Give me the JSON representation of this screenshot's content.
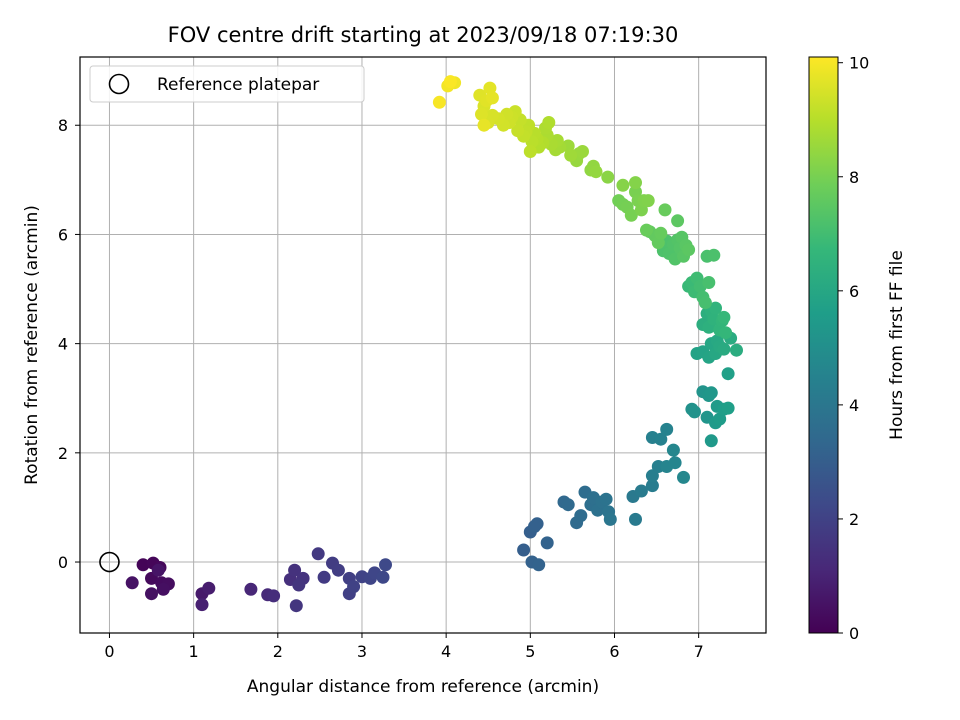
{
  "chart_data": {
    "type": "scatter",
    "title": "FOV centre drift starting at 2023/09/18 07:19:30",
    "xlabel": "Angular distance from reference (arcmin)",
    "ylabel": "Rotation from reference (arcmin)",
    "xlim": [
      -0.35,
      7.8
    ],
    "ylim": [
      -1.3,
      9.25
    ],
    "xticks": [
      0,
      1,
      2,
      3,
      4,
      5,
      6,
      7
    ],
    "yticks": [
      0,
      2,
      4,
      6,
      8
    ],
    "grid": true,
    "legend": {
      "position": "top-left",
      "entries": [
        {
          "label": "Reference platepar",
          "marker": "open-circle"
        }
      ]
    },
    "reference_point": {
      "x": 0,
      "y": 0
    },
    "colorbar": {
      "label": "Hours from first FF file",
      "colormap": "viridis",
      "range": [
        0,
        10.1
      ],
      "ticks": [
        0,
        2,
        4,
        6,
        8,
        10
      ]
    },
    "colormap_stops": [
      "#440154",
      "#482878",
      "#3e4989",
      "#31688e",
      "#26828e",
      "#1f9e89",
      "#35b779",
      "#6ece58",
      "#b5de2b",
      "#fde725"
    ],
    "points": [
      {
        "x": 0.4,
        "y": -0.05,
        "c": 0.1
      },
      {
        "x": 0.52,
        "y": -0.02,
        "c": 0.15
      },
      {
        "x": 0.6,
        "y": -0.1,
        "c": 0.2
      },
      {
        "x": 0.5,
        "y": -0.3,
        "c": 0.25
      },
      {
        "x": 0.62,
        "y": -0.38,
        "c": 0.3
      },
      {
        "x": 0.7,
        "y": -0.4,
        "c": 0.35
      },
      {
        "x": 0.64,
        "y": -0.5,
        "c": 0.4
      },
      {
        "x": 0.5,
        "y": -0.58,
        "c": 0.45
      },
      {
        "x": 0.27,
        "y": -0.38,
        "c": 0.5
      },
      {
        "x": 0.58,
        "y": -0.15,
        "c": 0.55
      },
      {
        "x": 1.1,
        "y": -0.58,
        "c": 0.7
      },
      {
        "x": 1.18,
        "y": -0.48,
        "c": 0.8
      },
      {
        "x": 1.1,
        "y": -0.78,
        "c": 0.9
      },
      {
        "x": 1.68,
        "y": -0.5,
        "c": 1.1
      },
      {
        "x": 1.88,
        "y": -0.6,
        "c": 1.2
      },
      {
        "x": 1.95,
        "y": -0.62,
        "c": 1.3
      },
      {
        "x": 2.15,
        "y": -0.32,
        "c": 1.4
      },
      {
        "x": 2.2,
        "y": -0.15,
        "c": 1.45
      },
      {
        "x": 2.3,
        "y": -0.3,
        "c": 1.5
      },
      {
        "x": 2.25,
        "y": -0.42,
        "c": 1.55
      },
      {
        "x": 2.22,
        "y": -0.8,
        "c": 1.6
      },
      {
        "x": 2.48,
        "y": 0.15,
        "c": 1.7
      },
      {
        "x": 2.55,
        "y": -0.28,
        "c": 1.75
      },
      {
        "x": 2.65,
        "y": -0.02,
        "c": 1.8
      },
      {
        "x": 2.72,
        "y": -0.15,
        "c": 1.85
      },
      {
        "x": 2.85,
        "y": -0.3,
        "c": 1.9
      },
      {
        "x": 2.85,
        "y": -0.58,
        "c": 1.95
      },
      {
        "x": 2.9,
        "y": -0.45,
        "c": 2.0
      },
      {
        "x": 3.0,
        "y": -0.27,
        "c": 2.05
      },
      {
        "x": 3.1,
        "y": -0.3,
        "c": 2.1
      },
      {
        "x": 3.15,
        "y": -0.2,
        "c": 2.15
      },
      {
        "x": 3.25,
        "y": -0.28,
        "c": 2.2
      },
      {
        "x": 3.28,
        "y": -0.05,
        "c": 2.25
      },
      {
        "x": 4.92,
        "y": 0.22,
        "c": 3.0
      },
      {
        "x": 5.0,
        "y": 0.55,
        "c": 3.05
      },
      {
        "x": 5.05,
        "y": 0.65,
        "c": 3.1
      },
      {
        "x": 5.08,
        "y": 0.7,
        "c": 3.12
      },
      {
        "x": 5.02,
        "y": 0.0,
        "c": 3.15
      },
      {
        "x": 5.1,
        "y": -0.05,
        "c": 3.18
      },
      {
        "x": 5.2,
        "y": 0.35,
        "c": 3.2
      },
      {
        "x": 5.4,
        "y": 1.1,
        "c": 3.4
      },
      {
        "x": 5.45,
        "y": 1.05,
        "c": 3.45
      },
      {
        "x": 5.55,
        "y": 0.72,
        "c": 3.5
      },
      {
        "x": 5.6,
        "y": 0.85,
        "c": 3.55
      },
      {
        "x": 5.65,
        "y": 1.28,
        "c": 3.6
      },
      {
        "x": 5.72,
        "y": 1.05,
        "c": 3.65
      },
      {
        "x": 5.75,
        "y": 1.18,
        "c": 3.7
      },
      {
        "x": 5.8,
        "y": 0.95,
        "c": 3.75
      },
      {
        "x": 5.85,
        "y": 1.1,
        "c": 3.8
      },
      {
        "x": 5.9,
        "y": 1.15,
        "c": 3.85
      },
      {
        "x": 5.93,
        "y": 0.92,
        "c": 3.9
      },
      {
        "x": 5.95,
        "y": 0.78,
        "c": 3.95
      },
      {
        "x": 6.22,
        "y": 1.2,
        "c": 4.1
      },
      {
        "x": 6.25,
        "y": 0.78,
        "c": 4.15
      },
      {
        "x": 6.32,
        "y": 1.3,
        "c": 4.2
      },
      {
        "x": 6.45,
        "y": 1.4,
        "c": 4.25
      },
      {
        "x": 6.45,
        "y": 1.58,
        "c": 4.3
      },
      {
        "x": 6.52,
        "y": 1.75,
        "c": 4.35
      },
      {
        "x": 6.45,
        "y": 2.28,
        "c": 4.4
      },
      {
        "x": 6.55,
        "y": 2.25,
        "c": 4.45
      },
      {
        "x": 6.62,
        "y": 2.43,
        "c": 4.5
      },
      {
        "x": 6.62,
        "y": 1.75,
        "c": 4.55
      },
      {
        "x": 6.72,
        "y": 1.82,
        "c": 4.6
      },
      {
        "x": 6.7,
        "y": 2.05,
        "c": 4.65
      },
      {
        "x": 6.82,
        "y": 1.55,
        "c": 4.7
      },
      {
        "x": 6.92,
        "y": 2.8,
        "c": 5.1
      },
      {
        "x": 6.95,
        "y": 2.75,
        "c": 5.15
      },
      {
        "x": 7.05,
        "y": 3.12,
        "c": 5.2
      },
      {
        "x": 7.1,
        "y": 2.65,
        "c": 5.25
      },
      {
        "x": 7.12,
        "y": 3.05,
        "c": 5.3
      },
      {
        "x": 7.15,
        "y": 3.1,
        "c": 5.35
      },
      {
        "x": 7.15,
        "y": 2.22,
        "c": 5.4
      },
      {
        "x": 7.2,
        "y": 2.55,
        "c": 5.45
      },
      {
        "x": 7.22,
        "y": 2.85,
        "c": 5.5
      },
      {
        "x": 7.25,
        "y": 2.62,
        "c": 5.55
      },
      {
        "x": 7.3,
        "y": 2.8,
        "c": 5.6
      },
      {
        "x": 7.35,
        "y": 2.82,
        "c": 5.65
      },
      {
        "x": 7.35,
        "y": 3.45,
        "c": 5.7
      },
      {
        "x": 6.98,
        "y": 3.82,
        "c": 5.8
      },
      {
        "x": 7.05,
        "y": 3.85,
        "c": 5.85
      },
      {
        "x": 7.12,
        "y": 3.75,
        "c": 5.9
      },
      {
        "x": 7.15,
        "y": 4.0,
        "c": 5.95
      },
      {
        "x": 7.2,
        "y": 3.82,
        "c": 6.0
      },
      {
        "x": 7.22,
        "y": 4.05,
        "c": 6.05
      },
      {
        "x": 7.25,
        "y": 3.95,
        "c": 6.1
      },
      {
        "x": 7.3,
        "y": 3.9,
        "c": 6.15
      },
      {
        "x": 7.38,
        "y": 4.1,
        "c": 6.2
      },
      {
        "x": 7.45,
        "y": 3.88,
        "c": 6.25
      },
      {
        "x": 7.05,
        "y": 4.35,
        "c": 6.3
      },
      {
        "x": 7.1,
        "y": 4.55,
        "c": 6.35
      },
      {
        "x": 7.12,
        "y": 4.3,
        "c": 6.4
      },
      {
        "x": 7.15,
        "y": 4.6,
        "c": 6.45
      },
      {
        "x": 7.18,
        "y": 4.45,
        "c": 6.5
      },
      {
        "x": 7.2,
        "y": 4.65,
        "c": 6.55
      },
      {
        "x": 7.25,
        "y": 4.25,
        "c": 6.6
      },
      {
        "x": 7.28,
        "y": 4.42,
        "c": 6.65
      },
      {
        "x": 7.32,
        "y": 4.2,
        "c": 6.7
      },
      {
        "x": 7.3,
        "y": 4.48,
        "c": 6.75
      },
      {
        "x": 6.88,
        "y": 5.05,
        "c": 6.8
      },
      {
        "x": 6.92,
        "y": 5.12,
        "c": 6.85
      },
      {
        "x": 6.95,
        "y": 4.95,
        "c": 6.9
      },
      {
        "x": 6.98,
        "y": 5.2,
        "c": 6.95
      },
      {
        "x": 7.02,
        "y": 5.05,
        "c": 7.0
      },
      {
        "x": 7.05,
        "y": 4.85,
        "c": 7.05
      },
      {
        "x": 7.08,
        "y": 4.75,
        "c": 7.08
      },
      {
        "x": 7.12,
        "y": 5.12,
        "c": 7.1
      },
      {
        "x": 7.1,
        "y": 5.6,
        "c": 7.15
      },
      {
        "x": 7.18,
        "y": 5.62,
        "c": 7.18
      },
      {
        "x": 6.58,
        "y": 5.7,
        "c": 7.2
      },
      {
        "x": 6.62,
        "y": 5.88,
        "c": 7.22
      },
      {
        "x": 6.65,
        "y": 5.65,
        "c": 7.25
      },
      {
        "x": 6.7,
        "y": 5.82,
        "c": 7.28
      },
      {
        "x": 6.72,
        "y": 5.55,
        "c": 7.3
      },
      {
        "x": 6.75,
        "y": 5.9,
        "c": 7.33
      },
      {
        "x": 6.78,
        "y": 5.75,
        "c": 7.36
      },
      {
        "x": 6.8,
        "y": 5.95,
        "c": 7.4
      },
      {
        "x": 6.82,
        "y": 5.6,
        "c": 7.43
      },
      {
        "x": 6.85,
        "y": 5.8,
        "c": 7.46
      },
      {
        "x": 6.88,
        "y": 5.72,
        "c": 7.5
      },
      {
        "x": 6.75,
        "y": 6.25,
        "c": 7.52
      },
      {
        "x": 6.42,
        "y": 6.05,
        "c": 7.6
      },
      {
        "x": 6.48,
        "y": 5.98,
        "c": 7.63
      },
      {
        "x": 6.52,
        "y": 5.85,
        "c": 7.66
      },
      {
        "x": 6.55,
        "y": 6.02,
        "c": 7.7
      },
      {
        "x": 6.6,
        "y": 6.45,
        "c": 7.73
      },
      {
        "x": 6.38,
        "y": 6.08,
        "c": 7.76
      },
      {
        "x": 6.05,
        "y": 6.62,
        "c": 7.9
      },
      {
        "x": 6.1,
        "y": 6.55,
        "c": 7.93
      },
      {
        "x": 6.15,
        "y": 6.5,
        "c": 7.96
      },
      {
        "x": 6.2,
        "y": 6.35,
        "c": 8.0
      },
      {
        "x": 6.25,
        "y": 6.78,
        "c": 8.03
      },
      {
        "x": 6.28,
        "y": 6.62,
        "c": 8.06
      },
      {
        "x": 6.32,
        "y": 6.45,
        "c": 8.1
      },
      {
        "x": 6.35,
        "y": 6.62,
        "c": 8.13
      },
      {
        "x": 6.4,
        "y": 6.62,
        "c": 8.16
      },
      {
        "x": 6.25,
        "y": 6.95,
        "c": 8.2
      },
      {
        "x": 6.1,
        "y": 6.9,
        "c": 8.23
      },
      {
        "x": 5.92,
        "y": 7.05,
        "c": 8.3
      },
      {
        "x": 5.72,
        "y": 7.18,
        "c": 8.4
      },
      {
        "x": 5.75,
        "y": 7.25,
        "c": 8.43
      },
      {
        "x": 5.78,
        "y": 7.15,
        "c": 8.46
      },
      {
        "x": 5.55,
        "y": 7.35,
        "c": 8.5
      },
      {
        "x": 5.58,
        "y": 7.48,
        "c": 8.53
      },
      {
        "x": 5.62,
        "y": 7.52,
        "c": 8.56
      },
      {
        "x": 5.45,
        "y": 7.62,
        "c": 8.6
      },
      {
        "x": 5.48,
        "y": 7.45,
        "c": 8.63
      },
      {
        "x": 5.35,
        "y": 7.6,
        "c": 8.7
      },
      {
        "x": 5.3,
        "y": 7.55,
        "c": 8.73
      },
      {
        "x": 5.32,
        "y": 7.72,
        "c": 8.76
      },
      {
        "x": 5.25,
        "y": 7.65,
        "c": 8.8
      },
      {
        "x": 5.2,
        "y": 7.82,
        "c": 8.83
      },
      {
        "x": 5.18,
        "y": 7.95,
        "c": 8.86
      },
      {
        "x": 5.22,
        "y": 8.05,
        "c": 8.9
      },
      {
        "x": 5.15,
        "y": 7.68,
        "c": 8.93
      },
      {
        "x": 5.1,
        "y": 7.6,
        "c": 8.96
      },
      {
        "x": 5.08,
        "y": 7.75,
        "c": 9.0
      },
      {
        "x": 5.05,
        "y": 7.85,
        "c": 9.03
      },
      {
        "x": 5.02,
        "y": 7.7,
        "c": 9.06
      },
      {
        "x": 5.0,
        "y": 7.52,
        "c": 9.1
      },
      {
        "x": 4.98,
        "y": 8.0,
        "c": 9.13
      },
      {
        "x": 4.95,
        "y": 7.88,
        "c": 9.16
      },
      {
        "x": 4.92,
        "y": 7.8,
        "c": 9.2
      },
      {
        "x": 4.88,
        "y": 8.1,
        "c": 9.23
      },
      {
        "x": 4.85,
        "y": 7.9,
        "c": 9.26
      },
      {
        "x": 4.82,
        "y": 8.25,
        "c": 9.3
      },
      {
        "x": 4.78,
        "y": 8.15,
        "c": 9.33
      },
      {
        "x": 4.75,
        "y": 8.05,
        "c": 9.36
      },
      {
        "x": 4.72,
        "y": 8.2,
        "c": 9.4
      },
      {
        "x": 4.68,
        "y": 8.0,
        "c": 9.43
      },
      {
        "x": 4.62,
        "y": 8.12,
        "c": 9.46
      },
      {
        "x": 4.55,
        "y": 8.18,
        "c": 9.5
      },
      {
        "x": 4.5,
        "y": 8.05,
        "c": 9.53
      },
      {
        "x": 4.45,
        "y": 8.35,
        "c": 9.56
      },
      {
        "x": 4.42,
        "y": 8.2,
        "c": 9.6
      },
      {
        "x": 4.4,
        "y": 8.55,
        "c": 9.63
      },
      {
        "x": 4.48,
        "y": 8.45,
        "c": 9.66
      },
      {
        "x": 4.52,
        "y": 8.68,
        "c": 9.7
      },
      {
        "x": 4.55,
        "y": 8.5,
        "c": 9.73
      },
      {
        "x": 4.45,
        "y": 8.0,
        "c": 9.76
      },
      {
        "x": 4.1,
        "y": 8.78,
        "c": 9.9
      },
      {
        "x": 4.02,
        "y": 8.72,
        "c": 9.95
      },
      {
        "x": 3.92,
        "y": 8.42,
        "c": 10.0
      },
      {
        "x": 4.05,
        "y": 8.8,
        "c": 10.05
      }
    ]
  }
}
